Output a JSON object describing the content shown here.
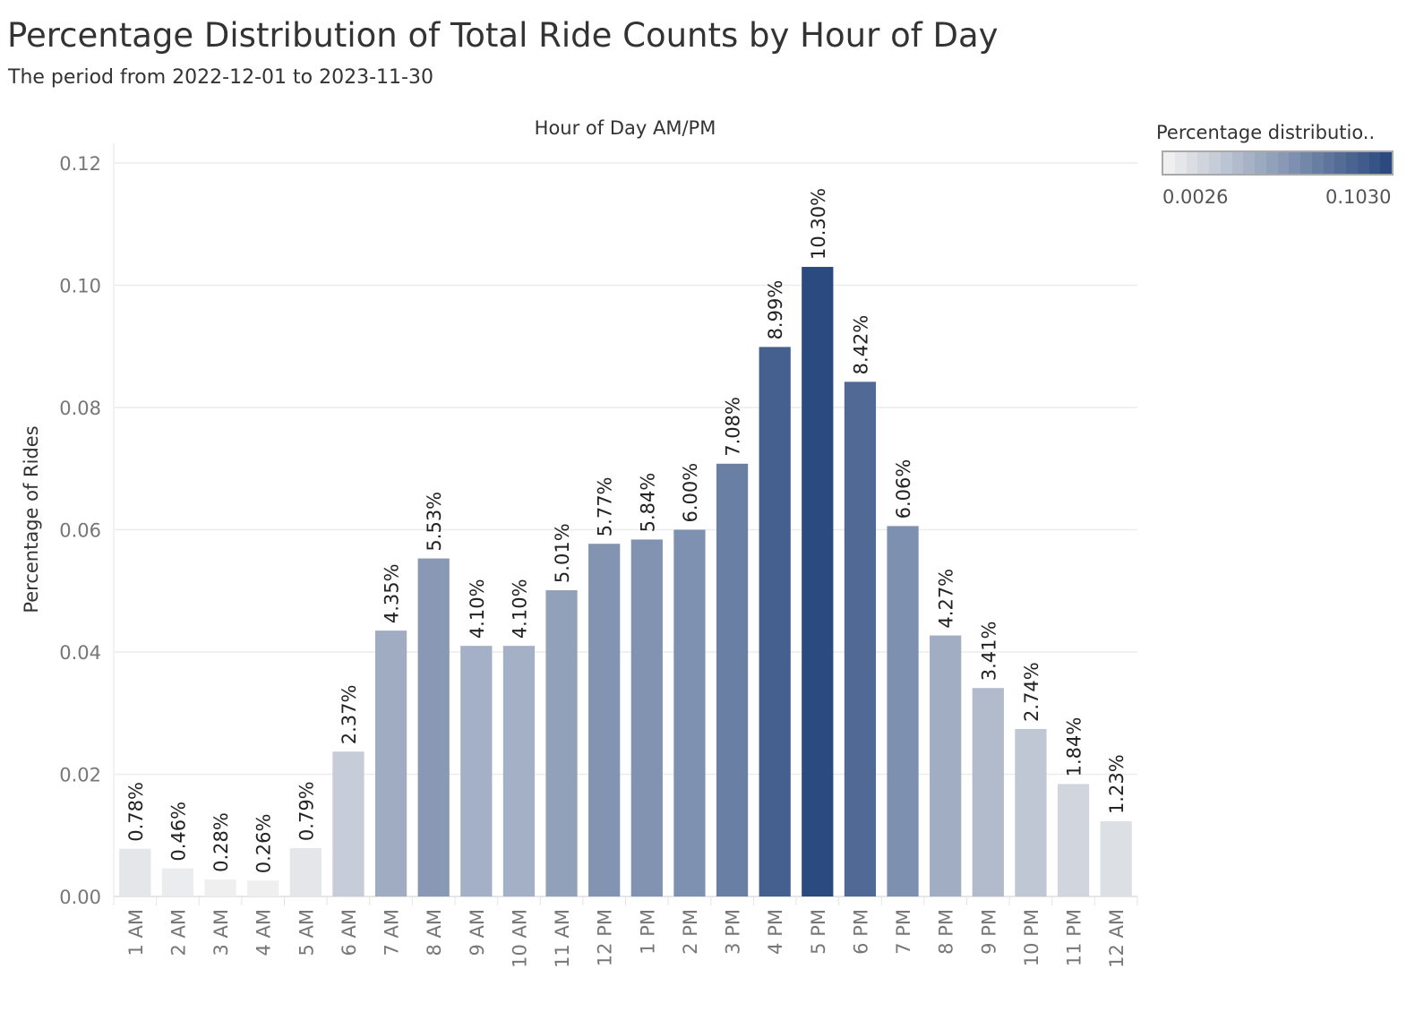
{
  "title": "Percentage Distribution of Total Ride Counts by Hour of Day",
  "subtitle": "The period from 2022-12-01 to 2023-11-30",
  "legend": {
    "title": "Percentage distributio..",
    "min_label": "0.0026",
    "max_label": "0.1030",
    "color_low": "#efefef",
    "color_high": "#2b4a80"
  },
  "chart_data": {
    "type": "bar",
    "title": "Percentage Distribution of Total Ride Counts by Hour of Day",
    "subtitle": "The period from 2022-12-01 to 2023-11-30",
    "xlabel": "Hour of Day AM/PM",
    "ylabel": "Percentage of Rides",
    "ylim": [
      0,
      0.12
    ],
    "yticks": [
      "0.00",
      "0.02",
      "0.04",
      "0.06",
      "0.08",
      "0.10",
      "0.12"
    ],
    "grid": true,
    "legend_position": "top-right",
    "categories": [
      "1 AM",
      "2 AM",
      "3 AM",
      "4 AM",
      "5 AM",
      "6 AM",
      "7 AM",
      "8 AM",
      "9 AM",
      "10 AM",
      "11 AM",
      "12 PM",
      "1 PM",
      "2 PM",
      "3 PM",
      "4 PM",
      "5 PM",
      "6 PM",
      "7 PM",
      "8 PM",
      "9 PM",
      "10 PM",
      "11 PM",
      "12 AM"
    ],
    "values": [
      0.0078,
      0.0046,
      0.0028,
      0.0026,
      0.0079,
      0.0237,
      0.0435,
      0.0553,
      0.041,
      0.041,
      0.0501,
      0.0577,
      0.0584,
      0.06,
      0.0708,
      0.0899,
      0.103,
      0.0842,
      0.0606,
      0.0427,
      0.0341,
      0.0274,
      0.0184,
      0.0123
    ],
    "data_labels": [
      "0.78%",
      "0.46%",
      "0.28%",
      "0.26%",
      "0.79%",
      "2.37%",
      "4.35%",
      "5.53%",
      "4.10%",
      "4.10%",
      "5.01%",
      "5.77%",
      "5.84%",
      "6.00%",
      "7.08%",
      "8.99%",
      "10.30%",
      "8.42%",
      "6.06%",
      "4.27%",
      "3.41%",
      "2.74%",
      "1.84%",
      "1.23%"
    ],
    "color_scale": {
      "min": 0.0026,
      "max": 0.103
    }
  }
}
